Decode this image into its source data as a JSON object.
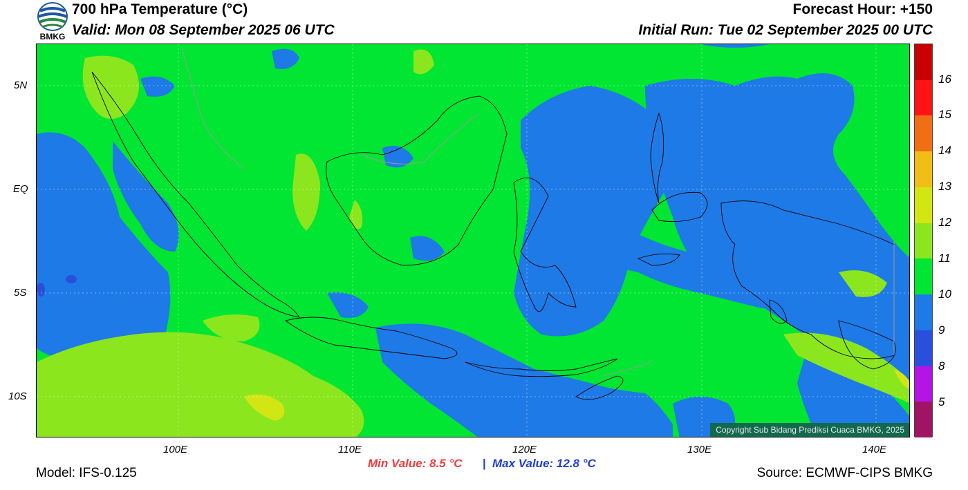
{
  "header": {
    "logo_text": "BMKG",
    "title": "700 hPa Temperature (°C)",
    "valid": "Valid: Mon 08 September 2025 06 UTC",
    "forecast_hour": "Forecast Hour: +150",
    "initial_run": "Initial Run: Tue 02 September 2025 00 UTC"
  },
  "map": {
    "lat_labels": [
      "5N",
      "EQ",
      "5S",
      "10S"
    ],
    "lon_labels": [
      "100E",
      "110E",
      "120E",
      "130E",
      "140E"
    ],
    "copyright": "Copyright Sub Bidang Prediksi Cuaca BMKG, 2025",
    "background_color": "#00e632",
    "cool_color": "#1e7ae6",
    "warm_color": "#8ce61e"
  },
  "colorbar": {
    "labels": [
      "16",
      "15",
      "14",
      "13",
      "12",
      "11",
      "10",
      "9",
      "8",
      "5"
    ],
    "colors": [
      "#c80000",
      "#ff1414",
      "#f06e14",
      "#f0be14",
      "#d2e614",
      "#8ce61e",
      "#00e632",
      "#1e7ae6",
      "#2850dc",
      "#b414e6",
      "#a01464"
    ]
  },
  "footer": {
    "model": "Model: IFS-0.125",
    "min_value": "Min Value: 8.5 °C",
    "separator": "|",
    "max_value": "Max Value: 12.8 °C",
    "source": "Source: ECMWF-CIPS BMKG"
  }
}
